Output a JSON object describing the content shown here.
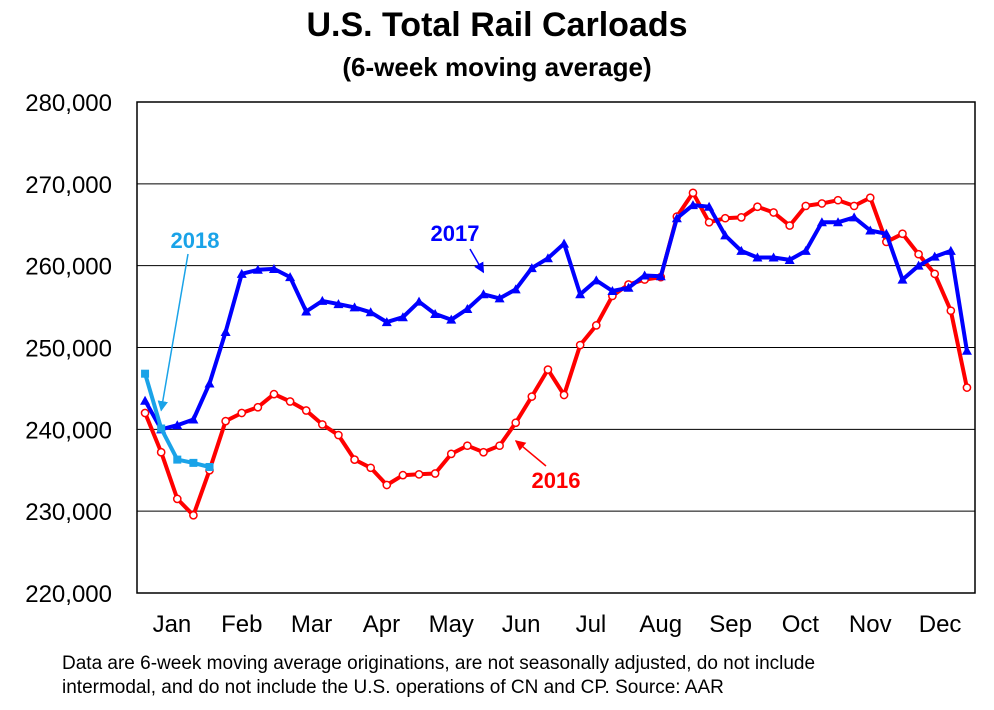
{
  "chart_data": {
    "type": "line",
    "title": "U.S. Total Rail Carloads",
    "subtitle": "(6-week moving average)",
    "xlabel": "",
    "ylabel": "",
    "ylim": [
      220000,
      280000
    ],
    "yticks": [
      220000,
      230000,
      240000,
      250000,
      260000,
      270000,
      280000
    ],
    "ytick_labels": [
      "220,000",
      "230,000",
      "240,000",
      "250,000",
      "260,000",
      "270,000",
      "280,000"
    ],
    "months": [
      "Jan",
      "Feb",
      "Mar",
      "Apr",
      "May",
      "Jun",
      "Jul",
      "Aug",
      "Sep",
      "Oct",
      "Nov",
      "Dec"
    ],
    "x_unit": "week of year (1-52)",
    "grid": "horizontal",
    "series": [
      {
        "name": "2016",
        "color": "#ff0000",
        "marker": "open-circle",
        "x": [
          1,
          2,
          3,
          4,
          5,
          6,
          7,
          8,
          9,
          10,
          11,
          12,
          13,
          14,
          15,
          16,
          17,
          18,
          19,
          20,
          21,
          22,
          23,
          24,
          25,
          26,
          27,
          28,
          29,
          30,
          31,
          32,
          33,
          34,
          35,
          36,
          37,
          38,
          39,
          40,
          41,
          42,
          43,
          44,
          45,
          46,
          47,
          48,
          49,
          50,
          51,
          52
        ],
        "values": [
          242000,
          237200,
          231500,
          229500,
          235000,
          241000,
          242000,
          242700,
          244300,
          243400,
          242300,
          240600,
          239300,
          236300,
          235300,
          233200,
          234400,
          234500,
          234600,
          237000,
          238000,
          237200,
          238000,
          240800,
          244000,
          247300,
          244200,
          250300,
          252700,
          256300,
          257700,
          258300,
          258600,
          266000,
          268900,
          265300,
          265800,
          265900,
          267200,
          266500,
          264900,
          267300,
          267600,
          268000,
          267300,
          268300,
          262900,
          263900,
          261400,
          259000,
          254500,
          245100
        ]
      },
      {
        "name": "2017",
        "color": "#0000ff",
        "marker": "filled-triangle",
        "x": [
          1,
          2,
          3,
          4,
          5,
          6,
          7,
          8,
          9,
          10,
          11,
          12,
          13,
          14,
          15,
          16,
          17,
          18,
          19,
          20,
          21,
          22,
          23,
          24,
          25,
          26,
          27,
          28,
          29,
          30,
          31,
          32,
          33,
          34,
          35,
          36,
          37,
          38,
          39,
          40,
          41,
          42,
          43,
          44,
          45,
          46,
          47,
          48,
          49,
          50,
          51,
          52
        ],
        "values": [
          243500,
          240000,
          240500,
          241200,
          245600,
          251900,
          259000,
          259500,
          259600,
          258600,
          254400,
          255700,
          255300,
          254900,
          254300,
          253100,
          253700,
          255600,
          254100,
          253400,
          254700,
          256500,
          256000,
          257100,
          259700,
          260900,
          262700,
          256500,
          258200,
          256900,
          257300,
          258800,
          258700,
          265800,
          267400,
          267200,
          263700,
          261800,
          261000,
          261000,
          260700,
          261800,
          265300,
          265300,
          265900,
          264300,
          263900,
          258300,
          260000,
          261100,
          261800,
          249600
        ]
      },
      {
        "name": "2018",
        "color": "#1aa3e8",
        "marker": "filled-square",
        "x": [
          1,
          2,
          3,
          4,
          5
        ],
        "values": [
          246800,
          240100,
          236300,
          235900,
          235400
        ]
      }
    ],
    "annotations": [
      {
        "text": "2018",
        "color": "#1aa3e8",
        "series": "2018"
      },
      {
        "text": "2017",
        "color": "#0000ff",
        "series": "2017"
      },
      {
        "text": "2016",
        "color": "#ff0000",
        "series": "2016"
      }
    ]
  },
  "footnote_line1": "Data are 6-week moving average originations, are not seasonally adjusted, do not include",
  "footnote_line2": "intermodal, and do not include the U.S. operations of CN and CP.   Source: AAR"
}
